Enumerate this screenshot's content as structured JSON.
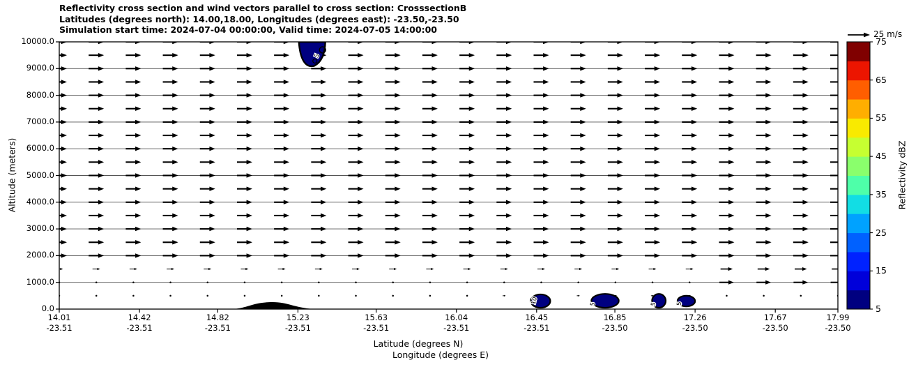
{
  "header": {
    "line1": "Reflectivity cross section and wind vectors parallel to cross section: CrosssectionB",
    "line2": "Latitudes (degrees north): 14.00,18.00, Longitudes (degrees east): -23.50,-23.50",
    "line3": "Simulation start time: 2024-07-04 00:00:00, Valid time: 2024-07-05 14:00:00"
  },
  "axes": {
    "y_label": "Altitude (meters)",
    "x_label_line1": "Latitude (degrees N)",
    "x_label_line2": "Longitude (degrees E)",
    "y_ticks": [
      "0.0",
      "1000.0",
      "2000.0",
      "3000.0",
      "4000.0",
      "5000.0",
      "6000.0",
      "7000.0",
      "8000.0",
      "9000.0",
      "10000.0"
    ],
    "x_ticks": [
      {
        "lat": "14.01",
        "lon": "-23.51"
      },
      {
        "lat": "14.42",
        "lon": "-23.51"
      },
      {
        "lat": "14.82",
        "lon": "-23.51"
      },
      {
        "lat": "15.23",
        "lon": "-23.51"
      },
      {
        "lat": "15.63",
        "lon": "-23.51"
      },
      {
        "lat": "16.04",
        "lon": "-23.51"
      },
      {
        "lat": "16.45",
        "lon": "-23.51"
      },
      {
        "lat": "16.85",
        "lon": "-23.50"
      },
      {
        "lat": "17.26",
        "lon": "-23.50"
      },
      {
        "lat": "17.67",
        "lon": "-23.50"
      },
      {
        "lat": "17.99",
        "lon": "-23.50"
      }
    ]
  },
  "colorbar": {
    "label": "Reflectivity dBZ",
    "tick_labels": [
      "5",
      "15",
      "25",
      "35",
      "45",
      "55",
      "65",
      "75"
    ],
    "levels_dbz": [
      5,
      10,
      15,
      20,
      25,
      30,
      35,
      40,
      45,
      50,
      55,
      60,
      65,
      70,
      75
    ],
    "colors_bottom_to_top": [
      "#000080",
      "#0000da",
      "#0022ff",
      "#0061ff",
      "#00a2ff",
      "#12dde4",
      "#4effa9",
      "#8aff6c",
      "#c6ff31",
      "#f9ea00",
      "#ffae00",
      "#ff5e00",
      "#ec1500",
      "#800000"
    ]
  },
  "quiver_key": {
    "label": "25 m/s",
    "speed_m_s": 25
  },
  "chart_data": {
    "type": "vertical-cross-section (filled reflectivity contours + wind-vector quiver)",
    "x_axis": {
      "label": "Latitude (degrees N)",
      "range": [
        14.01,
        17.99
      ]
    },
    "y_axis": {
      "label": "Altitude (meters)",
      "range": [
        0,
        10000
      ]
    },
    "grid": {
      "horizontal_lines_every_m": 1000
    },
    "wind": {
      "direction": "uniform, pointing toward increasing latitude (left to right)",
      "reference_speed_m_s": 25,
      "columns": 22,
      "row_altitudes_m": {
        "min": 500,
        "max": 10000,
        "step": 500
      },
      "low_level_behavior": "arrows shrink to dots below ~1500 m over most of the section; near-full strength again right of ~17.4°N at 1000–1500 m"
    },
    "reflectivity_features": [
      {
        "label": "5",
        "dbz_band": "5-15",
        "lat_range": [
          15.235,
          15.37
        ],
        "alt_range_m": [
          9100,
          10000
        ],
        "note": "cell clipped at plot top"
      },
      {
        "label": "10",
        "dbz_band": "5-15",
        "lat_range": [
          16.42,
          16.52
        ],
        "alt_range_m": [
          50,
          550
        ]
      },
      {
        "label": "5",
        "dbz_band": "5-10",
        "lat_range": [
          16.73,
          16.87
        ],
        "alt_range_m": [
          50,
          570
        ]
      },
      {
        "label": "5",
        "dbz_band": "5-10",
        "lat_range": [
          17.04,
          17.11
        ],
        "alt_range_m": [
          50,
          570
        ]
      },
      {
        "label": "5",
        "dbz_band": "5-10",
        "lat_range": [
          17.17,
          17.26
        ],
        "alt_range_m": [
          100,
          500
        ]
      }
    ],
    "terrain": {
      "lat_range": [
        14.9,
        15.31
      ],
      "peak_lat": 15.1,
      "peak_alt_m": 260,
      "color": "#000000"
    },
    "contour_fill_color_lowest_band": "#000080"
  }
}
